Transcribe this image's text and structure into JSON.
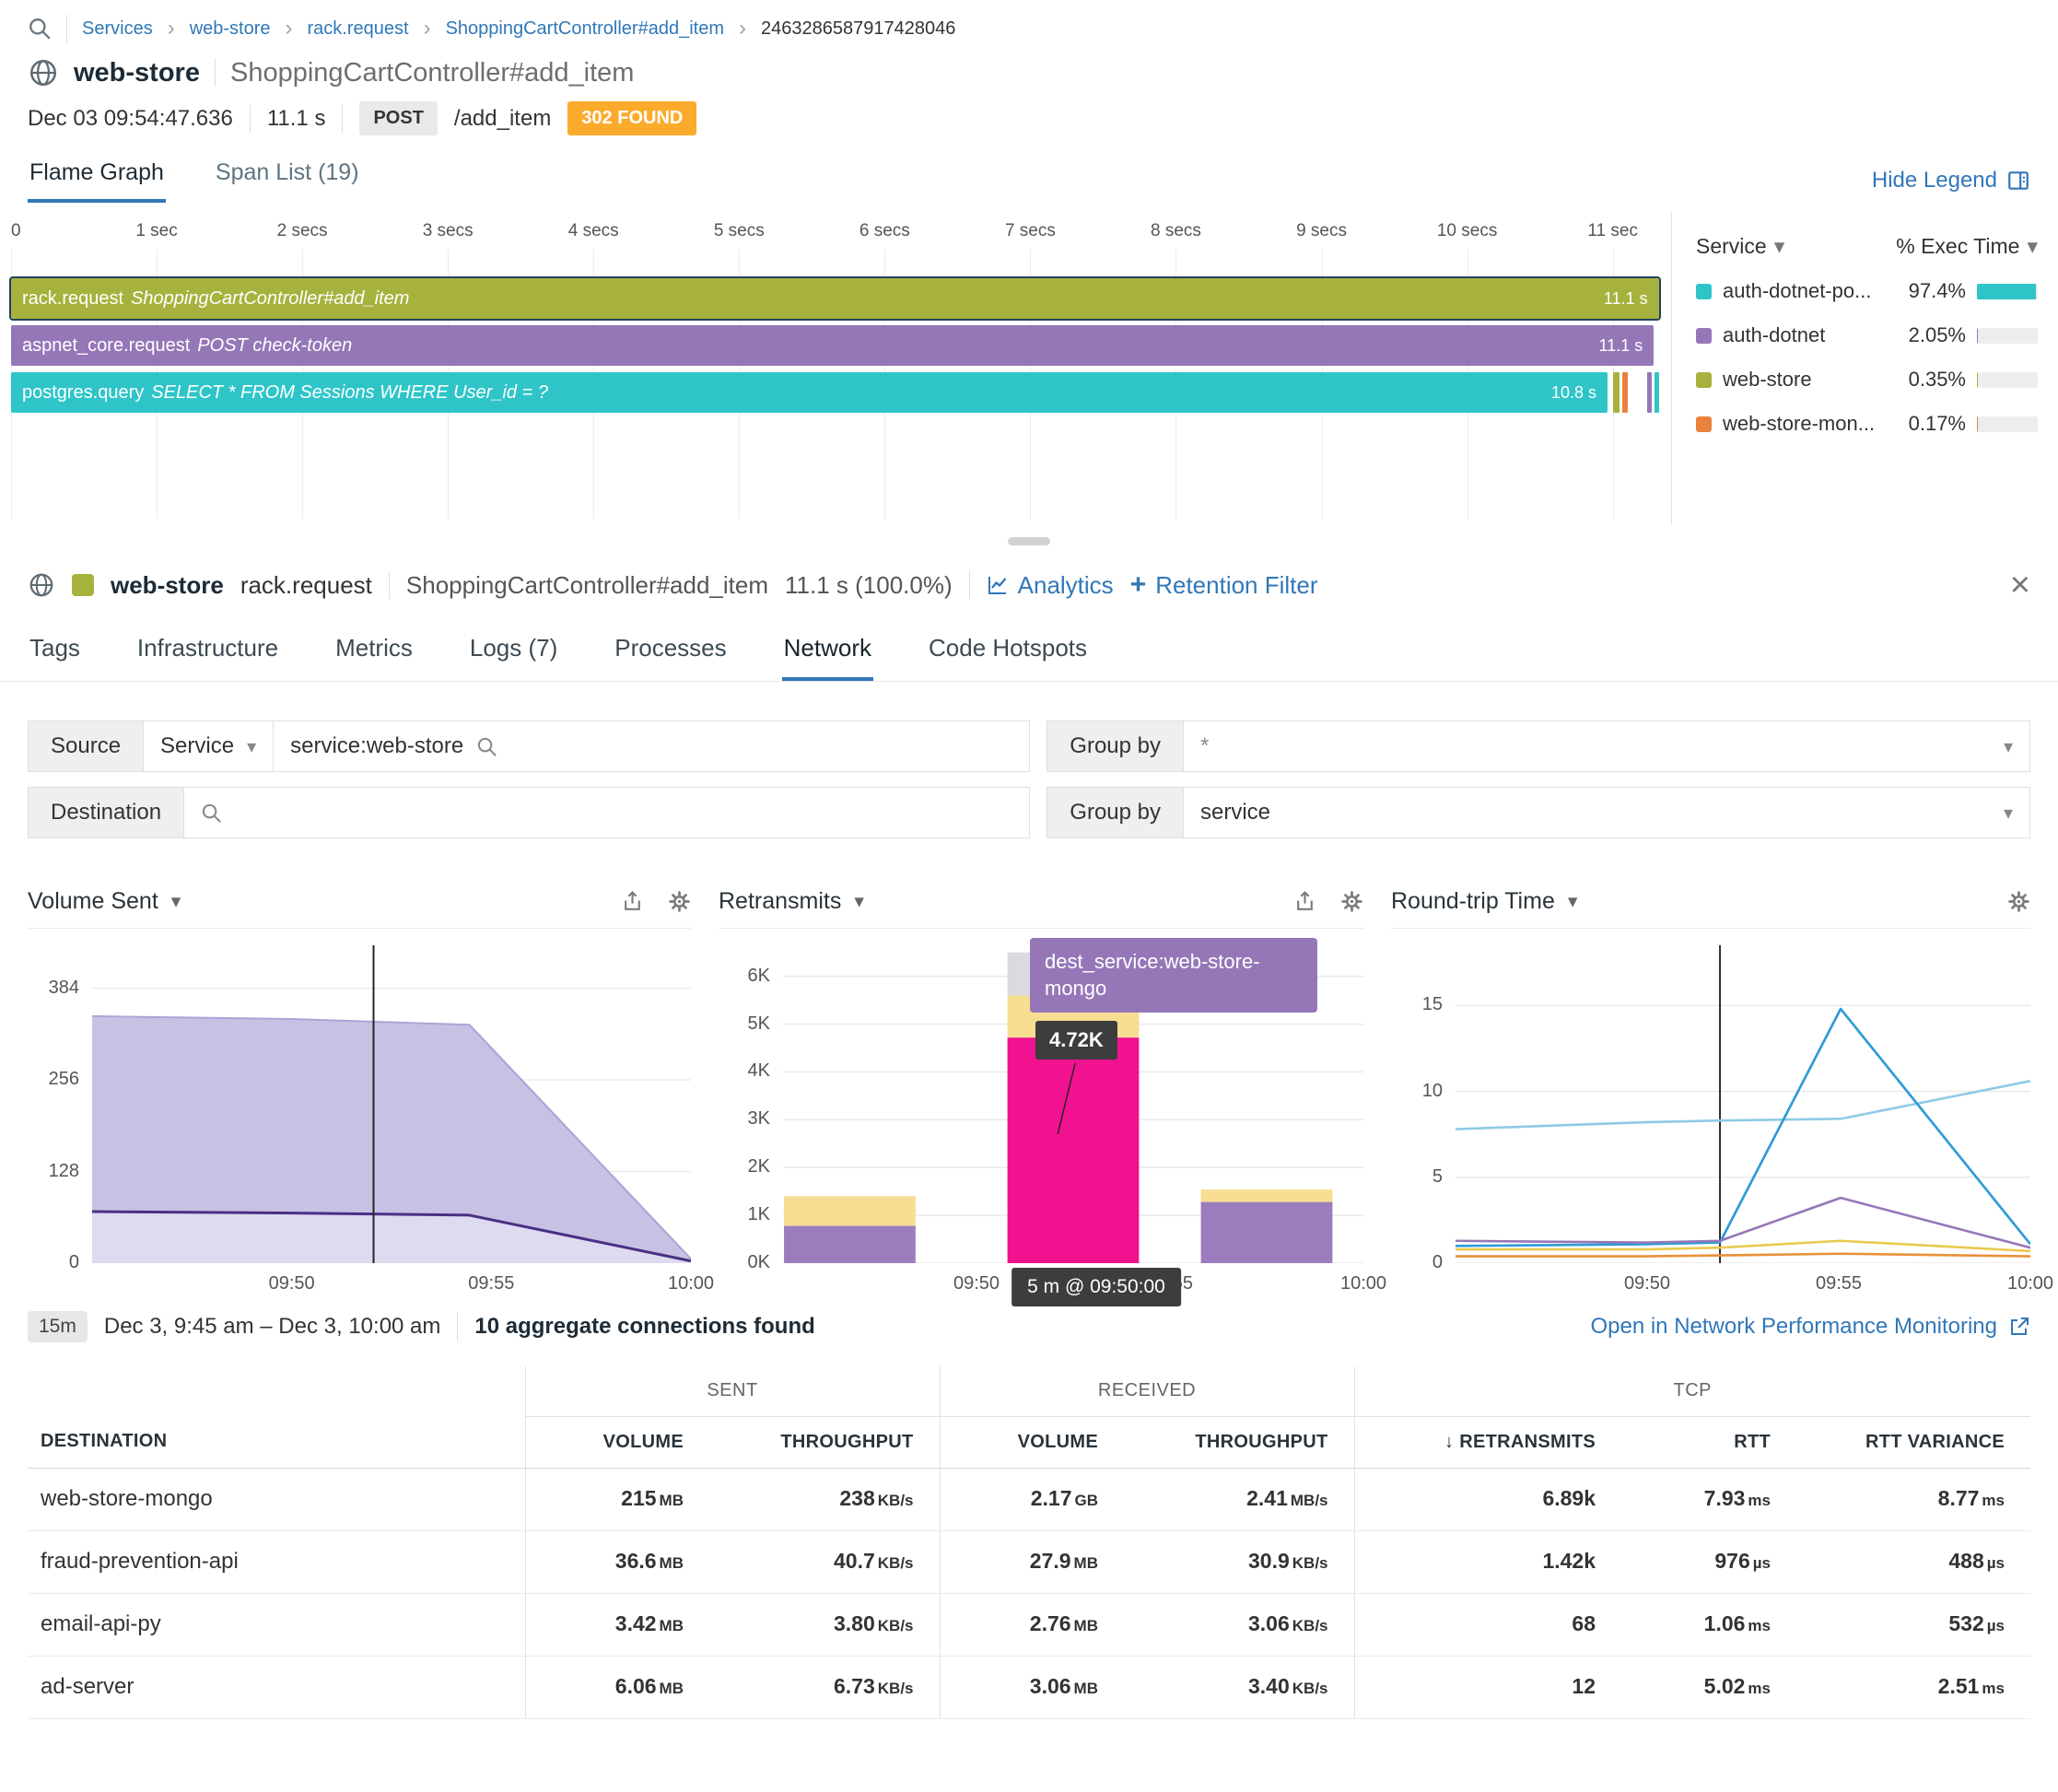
{
  "breadcrumb": {
    "items": [
      "Services",
      "web-store",
      "rack.request",
      "ShoppingCartController#add_item"
    ],
    "trace_id": "2463286587917428046"
  },
  "trace_header": {
    "service": "web-store",
    "resource": "ShoppingCartController#add_item",
    "timestamp": "Dec 03 09:54:47.636",
    "duration": "11.1 s",
    "method": "POST",
    "endpoint": "/add_item",
    "status_code": "302 FOUND",
    "status_color": "#fbab2c"
  },
  "trace_tabs": {
    "flame_graph": "Flame Graph",
    "span_list": "Span List (19)",
    "hide_legend": "Hide Legend"
  },
  "flame_graph": {
    "axis_ticks": [
      "0",
      "1 sec",
      "2 secs",
      "3 secs",
      "4 secs",
      "5 secs",
      "6 secs",
      "7 secs",
      "8 secs",
      "9 secs",
      "10 secs",
      "11 sec"
    ],
    "axis_max_seconds": 11.35,
    "spans": [
      {
        "name": "rack.request",
        "detail": "ShoppingCartController#add_item",
        "duration": "11.1 s",
        "color": "#a7b23e",
        "width_pct": 99.7,
        "selected": true
      },
      {
        "name": "aspnet_core.request",
        "detail": "POST check-token",
        "duration": "11.1 s",
        "color": "#9577b8",
        "width_pct": 99.4,
        "selected": false
      },
      {
        "name": "postgres.query",
        "detail": "SELECT * FROM Sessions WHERE User_id = ?",
        "duration": "10.8 s",
        "color": "#2fc5c8",
        "width_pct": 96.6,
        "selected": false
      }
    ],
    "slivers": [
      {
        "color": "#a7b23e",
        "left_pct": 96.95,
        "width_pct": 0.35
      },
      {
        "color": "#e8823d",
        "left_pct": 97.5,
        "width_pct": 0.3
      },
      {
        "color": "#9577b8",
        "left_pct": 99.0,
        "width_pct": 0.3
      },
      {
        "color": "#2fc5c8",
        "left_pct": 99.45,
        "width_pct": 0.25
      }
    ],
    "legend": {
      "service_label": "Service",
      "exec_label": "% Exec Time",
      "items": [
        {
          "name": "auth-dotnet-po...",
          "pct": "97.4%",
          "value": 97.4,
          "color": "#2fc5c8"
        },
        {
          "name": "auth-dotnet",
          "pct": "2.05%",
          "value": 2.05,
          "color": "#9577b8"
        },
        {
          "name": "web-store",
          "pct": "0.35%",
          "value": 0.35,
          "color": "#a7b23e"
        },
        {
          "name": "web-store-mon...",
          "pct": "0.17%",
          "value": 0.17,
          "color": "#e8823d"
        }
      ]
    }
  },
  "span_detail": {
    "service": "web-store",
    "service_color": "#a7b23e",
    "operation": "rack.request",
    "resource": "ShoppingCartController#add_item",
    "duration": "11.1 s (100.0%)",
    "analytics_label": "Analytics",
    "retention_plus": "+",
    "retention_label": "Retention Filter",
    "tabs": [
      {
        "label": "Tags",
        "active": false
      },
      {
        "label": "Infrastructure",
        "active": false
      },
      {
        "label": "Metrics",
        "active": false
      },
      {
        "label": "Logs (7)",
        "active": false
      },
      {
        "label": "Processes",
        "active": false
      },
      {
        "label": "Network",
        "active": true
      },
      {
        "label": "Code Hotspots",
        "active": false
      }
    ]
  },
  "network_filters": {
    "source_label": "Source",
    "source_type": "Service",
    "source_query": "service:web-store",
    "source_groupby_label": "Group by",
    "source_groupby_value": "*",
    "destination_label": "Destination",
    "dest_groupby_label": "Group by",
    "dest_groupby_value": "service"
  },
  "chart_data": [
    {
      "type": "area",
      "title": "Volume Sent",
      "x_window": [
        "09:45",
        "10:00"
      ],
      "x_ticks": [
        "09:50",
        "09:55",
        "10:00"
      ],
      "y_ticks": [
        "384",
        "256",
        "128",
        "0"
      ],
      "y_tick_values": [
        384,
        256,
        128,
        0
      ],
      "ylim": [
        0,
        444
      ],
      "cursor_x": 0.47,
      "series": [
        {
          "name": "volume-total",
          "fill": "#c7c2e3",
          "stroke": "#aba5d6",
          "x": [
            0,
            0.333,
            0.63,
            1
          ],
          "values": [
            345,
            341,
            333,
            6
          ]
        },
        {
          "name": "volume-lower",
          "fill": "#dedaf0",
          "stroke": "#4a2f85",
          "x": [
            0,
            0.333,
            0.63,
            1
          ],
          "values": [
            72,
            70,
            67,
            3
          ]
        }
      ]
    },
    {
      "type": "stacked-bar",
      "title": "Retransmits",
      "x_window": [
        "09:45",
        "10:00"
      ],
      "x_ticks": [
        "09:50",
        "09:55",
        "10:00"
      ],
      "y_ticks": [
        "6K",
        "5K",
        "4K",
        "3K",
        "2K",
        "1K",
        "0K"
      ],
      "y_tick_values": [
        6000,
        5000,
        4000,
        3000,
        2000,
        1000,
        0
      ],
      "ylim": [
        0,
        6650
      ],
      "bars": [
        {
          "time": "09:45",
          "segments": [
            {
              "color": "#9b7dbe",
              "value": 780
            },
            {
              "color": "#f7de92",
              "value": 620
            }
          ]
        },
        {
          "time": "09:50",
          "segments": [
            {
              "color": "#f0128f",
              "value": 4720
            },
            {
              "color": "#f7de92",
              "value": 880
            },
            {
              "color": "#dbdbdf",
              "value": 900
            }
          ]
        },
        {
          "time": "09:55",
          "segments": [
            {
              "color": "#9b7dbe",
              "value": 1280
            },
            {
              "color": "#f7de92",
              "value": 260
            }
          ]
        }
      ],
      "tooltip": {
        "label": "dest_service:web-store-mongo",
        "value": "4.72K",
        "time": "5 m @ 09:50:00"
      }
    },
    {
      "type": "line",
      "title": "Round-trip Time",
      "x_window": [
        "09:45",
        "10:00"
      ],
      "x_ticks": [
        "09:50",
        "09:55",
        "10:00"
      ],
      "y_ticks": [
        "15",
        "10",
        "5",
        "0"
      ],
      "y_tick_values": [
        15,
        10,
        5,
        0
      ],
      "ylim": [
        0,
        18.5
      ],
      "cursor_x": 0.46,
      "series": [
        {
          "name": "rtt-light-blue",
          "color": "#8fcae7",
          "x": [
            0,
            0.33,
            0.46,
            0.67,
            1
          ],
          "values": [
            7.8,
            8.2,
            8.3,
            8.4,
            10.6
          ]
        },
        {
          "name": "rtt-blue",
          "color": "#2e9bd6",
          "x": [
            0,
            0.33,
            0.46,
            0.67,
            1
          ],
          "values": [
            1.0,
            1.1,
            1.2,
            14.8,
            1.1
          ]
        },
        {
          "name": "rtt-purple",
          "color": "#9577b8",
          "x": [
            0,
            0.33,
            0.46,
            0.67,
            1
          ],
          "values": [
            1.3,
            1.2,
            1.3,
            3.8,
            0.9
          ]
        },
        {
          "name": "rtt-yellow",
          "color": "#e9c94d",
          "x": [
            0,
            0.33,
            0.46,
            0.67,
            1
          ],
          "values": [
            0.8,
            0.8,
            0.9,
            1.3,
            0.7
          ]
        },
        {
          "name": "rtt-orange",
          "color": "#e8913a",
          "x": [
            0,
            0.33,
            0.46,
            0.67,
            1
          ],
          "values": [
            0.4,
            0.4,
            0.45,
            0.55,
            0.4
          ]
        }
      ]
    }
  ],
  "summary": {
    "window": "15m",
    "range": "Dec 3, 9:45 am – Dec 3, 10:00 am",
    "connections": "10 aggregate connections found",
    "link": "Open in Network Performance Monitoring"
  },
  "table": {
    "groups": [
      {
        "label": "SENT"
      },
      {
        "label": "RECEIVED"
      },
      {
        "label": "TCP"
      }
    ],
    "columns": [
      "DESTINATION",
      "VOLUME",
      "THROUGHPUT",
      "VOLUME",
      "THROUGHPUT",
      "RETRANSMITS",
      "RTT",
      "RTT VARIANCE"
    ],
    "sort_icon": "↓",
    "rows": [
      {
        "destination": "web-store-mongo",
        "values": [
          [
            "215",
            "MB"
          ],
          [
            "238",
            "KB/s"
          ],
          [
            "2.17",
            "GB"
          ],
          [
            "2.41",
            "MB/s"
          ],
          [
            "6.89k",
            ""
          ],
          [
            "7.93",
            "ms"
          ],
          [
            "8.77",
            "ms"
          ]
        ]
      },
      {
        "destination": "fraud-prevention-api",
        "values": [
          [
            "36.6",
            "MB"
          ],
          [
            "40.7",
            "KB/s"
          ],
          [
            "27.9",
            "MB"
          ],
          [
            "30.9",
            "KB/s"
          ],
          [
            "1.42k",
            ""
          ],
          [
            "976",
            "µs"
          ],
          [
            "488",
            "µs"
          ]
        ]
      },
      {
        "destination": "email-api-py",
        "values": [
          [
            "3.42",
            "MB"
          ],
          [
            "3.80",
            "KB/s"
          ],
          [
            "2.76",
            "MB"
          ],
          [
            "3.06",
            "KB/s"
          ],
          [
            "68",
            ""
          ],
          [
            "1.06",
            "ms"
          ],
          [
            "532",
            "µs"
          ]
        ]
      },
      {
        "destination": "ad-server",
        "values": [
          [
            "6.06",
            "MB"
          ],
          [
            "6.73",
            "KB/s"
          ],
          [
            "3.06",
            "MB"
          ],
          [
            "3.40",
            "KB/s"
          ],
          [
            "12",
            ""
          ],
          [
            "5.02",
            "ms"
          ],
          [
            "2.51",
            "ms"
          ]
        ]
      }
    ]
  }
}
